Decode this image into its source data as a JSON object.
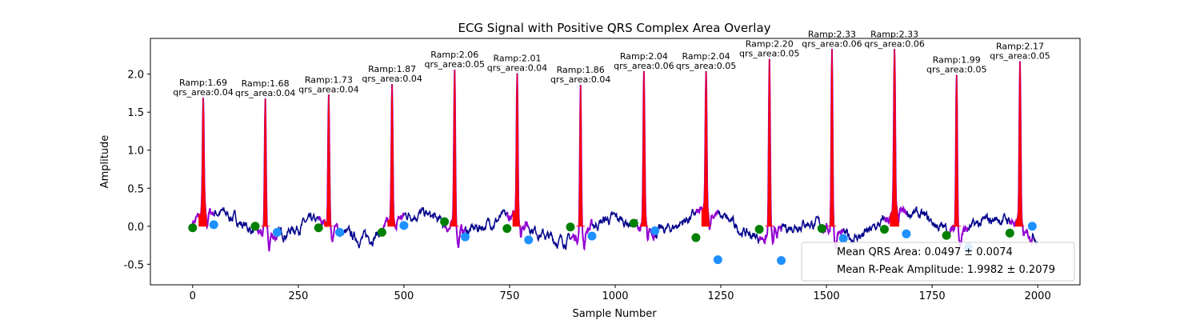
{
  "chart_data": {
    "type": "line",
    "title": "ECG Signal with Positive QRS Complex Area Overlay",
    "xlabel": "Sample Number",
    "ylabel": "Amplitude",
    "xlim": [
      -100,
      2100
    ],
    "ylim": [
      -0.77,
      2.47
    ],
    "xticks": [
      0,
      250,
      500,
      750,
      1000,
      1250,
      1500,
      1750,
      2000
    ],
    "yticks": [
      -0.5,
      0.0,
      0.5,
      1.0,
      1.5,
      2.0
    ],
    "grid": false,
    "colors": {
      "signal": "#00008b",
      "segment": "#9400d3",
      "area": "#ff0000",
      "onset": "#008000",
      "offset": "#1e90ff"
    },
    "beats": [
      {
        "r": 25,
        "ramp": 1.69,
        "area": 0.04,
        "onset": 0,
        "onset_y": -0.02,
        "offset": 50,
        "offset_y": 0.02
      },
      {
        "r": 172,
        "ramp": 1.68,
        "area": 0.04,
        "onset": 148,
        "onset_y": 0.0,
        "offset": 200,
        "offset_y": -0.08
      },
      {
        "r": 322,
        "ramp": 1.73,
        "area": 0.04,
        "onset": 298,
        "onset_y": -0.02,
        "offset": 348,
        "offset_y": -0.08
      },
      {
        "r": 472,
        "ramp": 1.87,
        "area": 0.04,
        "onset": 448,
        "onset_y": -0.08,
        "offset": 500,
        "offset_y": 0.01
      },
      {
        "r": 620,
        "ramp": 2.06,
        "area": 0.05,
        "onset": 596,
        "onset_y": 0.06,
        "offset": 645,
        "offset_y": -0.14
      },
      {
        "r": 768,
        "ramp": 2.01,
        "area": 0.04,
        "onset": 744,
        "onset_y": -0.03,
        "offset": 795,
        "offset_y": -0.18
      },
      {
        "r": 918,
        "ramp": 1.86,
        "area": 0.04,
        "onset": 894,
        "onset_y": -0.01,
        "offset": 945,
        "offset_y": -0.13
      },
      {
        "r": 1068,
        "ramp": 2.04,
        "area": 0.06,
        "onset": 1044,
        "onset_y": 0.04,
        "offset": 1094,
        "offset_y": -0.06
      },
      {
        "r": 1215,
        "ramp": 2.04,
        "area": 0.05,
        "onset": 1191,
        "onset_y": -0.15,
        "offset": 1243,
        "offset_y": -0.44
      },
      {
        "r": 1365,
        "ramp": 2.2,
        "area": 0.05,
        "onset": 1341,
        "onset_y": -0.04,
        "offset": 1393,
        "offset_y": -0.45
      },
      {
        "r": 1513,
        "ramp": 2.33,
        "area": 0.06,
        "onset": 1489,
        "onset_y": -0.03,
        "offset": 1540,
        "offset_y": -0.16
      },
      {
        "r": 1661,
        "ramp": 2.33,
        "area": 0.06,
        "onset": 1637,
        "onset_y": -0.04,
        "offset": 1689,
        "offset_y": -0.1
      },
      {
        "r": 1808,
        "ramp": 1.99,
        "area": 0.05,
        "onset": 1784,
        "onset_y": -0.12,
        "offset": 1836,
        "offset_y": -0.28
      },
      {
        "r": 1958,
        "ramp": 2.17,
        "area": 0.05,
        "onset": 1934,
        "onset_y": -0.09,
        "offset": 1987,
        "offset_y": 0.0
      }
    ],
    "annotation_prefixes": {
      "ramp": "Ramp:",
      "area": "qrs_area:"
    },
    "legend": {
      "placement": "lower right",
      "entries": [
        "Mean QRS Area: 0.0497 ± 0.0074",
        "Mean R-Peak Amplitude: 1.9982 ± 0.2079"
      ]
    }
  }
}
